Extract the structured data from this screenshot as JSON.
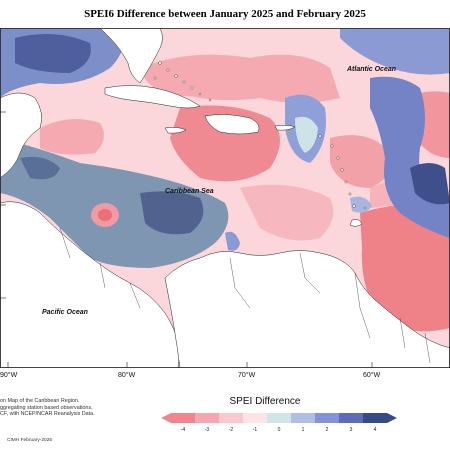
{
  "title": "SPEI6 Difference between January 2025 and February 2025",
  "labels": {
    "atlantic": "Atlantic Ocean",
    "caribbean": "Caribbean Sea",
    "pacific": "Pacific Ocean"
  },
  "longitudes": [
    "90°W",
    "80°W",
    "70°W",
    "60°W"
  ],
  "credits": [
    "on Map of the Caribbean Region.",
    "ggregating station based observations,",
    "CF, with NCEP/NCAR Reanalysis Data."
  ],
  "footer": "CIMH February-2025",
  "legend": {
    "title": "SPEI Difference",
    "ticks": [
      "-4",
      "-3",
      "-2",
      "-1",
      "0",
      "1",
      "2",
      "3",
      "4"
    ],
    "colors": [
      "#f2848f",
      "#f6a6ae",
      "#f9c8cc",
      "#fce4e6",
      "#cfe5e8",
      "#b0bde4",
      "#8492d6",
      "#5c6cb8",
      "#364a86"
    ]
  },
  "colors": {
    "land": "#ffffff",
    "strong_neg": "#ee7f88",
    "mid_neg": "#f4a9b1",
    "weak_neg": "#fad0d4",
    "neutral": "#fde8ea",
    "teal": "#c9e1e5",
    "weak_pos": "#9eaede",
    "mid_pos": "#7282c4",
    "strong_pos": "#47589a",
    "steel": "#7b93ad"
  }
}
